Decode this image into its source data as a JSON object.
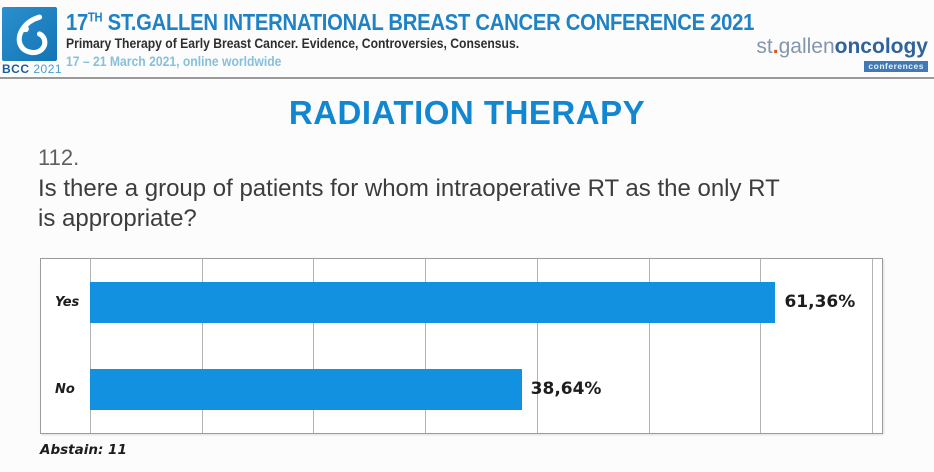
{
  "header": {
    "logo": {
      "bcc": "BCC",
      "year": "2021"
    },
    "title_prefix": "17",
    "title_sup": "TH",
    "title_rest": " ST.GALLEN INTERNATIONAL BREAST CANCER CONFERENCE 2021",
    "subtitle": "Primary Therapy of Early Breast Cancer. Evidence, Controversies, Consensus.",
    "dates": "17 – 21 March 2021, online worldwide",
    "partner_logo": {
      "st": "st",
      "dot": ".",
      "gallen": "gallen",
      "oncology": "oncology",
      "badge": "conferences"
    }
  },
  "section_title": "RADIATION THERAPY",
  "question": {
    "number": "112.",
    "text": "Is there a group of patients for whom intraoperative RT as the only RT is appropriate?"
  },
  "chart_data": {
    "type": "bar",
    "orientation": "horizontal",
    "categories": [
      "Yes",
      "No"
    ],
    "values": [
      61.36,
      38.64
    ],
    "value_labels": [
      "61,36%",
      "38,64%"
    ],
    "title": "",
    "xlabel": "",
    "ylabel": "",
    "xlim": [
      0,
      70
    ],
    "gridline_step": 10,
    "grid": "on",
    "bar_color": "#1191e0",
    "footnote": "Abstain: 11"
  },
  "colors": {
    "accent_blue": "#1287d1",
    "header_blue": "#1f82c4",
    "date_blue": "#85c0dd",
    "bar_blue": "#1191e0",
    "badge_blue": "#4079b5",
    "logo_blue": "#1b86c8"
  }
}
